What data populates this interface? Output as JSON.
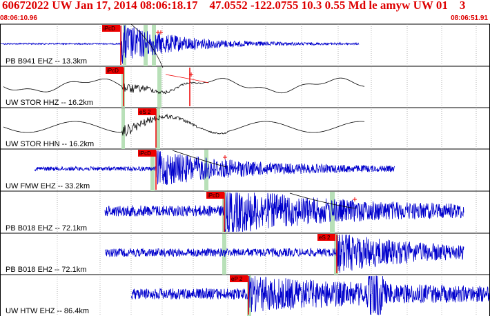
{
  "header": {
    "title": "60672022 UW Jan 17, 2014 08:06:18.17    47.0552 -122.0755 10.3 0.55 Md le amyw UW 01    3",
    "start_time": "08:06:10.96",
    "end_time": "08:06:51.91"
  },
  "colors": {
    "header_text": "#dd0000",
    "pick_marker": "#ee0000",
    "highpass_trace": "#0000cc",
    "broadband_trace": "#000000",
    "pick_window": "#b8e0b8",
    "grid": "#999999"
  },
  "traces": [
    {
      "label": "PB B941 EHZ -- 13.3km",
      "color": "#0000cc",
      "picks": [
        "iPcD"
      ]
    },
    {
      "label": "UW STOR HHZ -- 16.2km",
      "color": "#000000",
      "picks": [
        "iPcD"
      ]
    },
    {
      "label": "UW STOR HHN -- 16.2km",
      "color": "#000000",
      "picks": [
        "eS 2"
      ]
    },
    {
      "label": "UW FMW EHZ -- 33.2km",
      "color": "#0000cc",
      "picks": [
        "iPcD"
      ]
    },
    {
      "label": "PB B018 EHZ -- 72.1km",
      "color": "#0000cc",
      "picks": [
        "iPcD"
      ]
    },
    {
      "label": "PB B018 EH2 -- 72.1km",
      "color": "#0000cc",
      "picks": [
        "eS 2"
      ]
    },
    {
      "label": "UW HTW EHZ -- 86.4km",
      "color": "#0000cc",
      "picks": [
        "eP 2"
      ]
    }
  ]
}
